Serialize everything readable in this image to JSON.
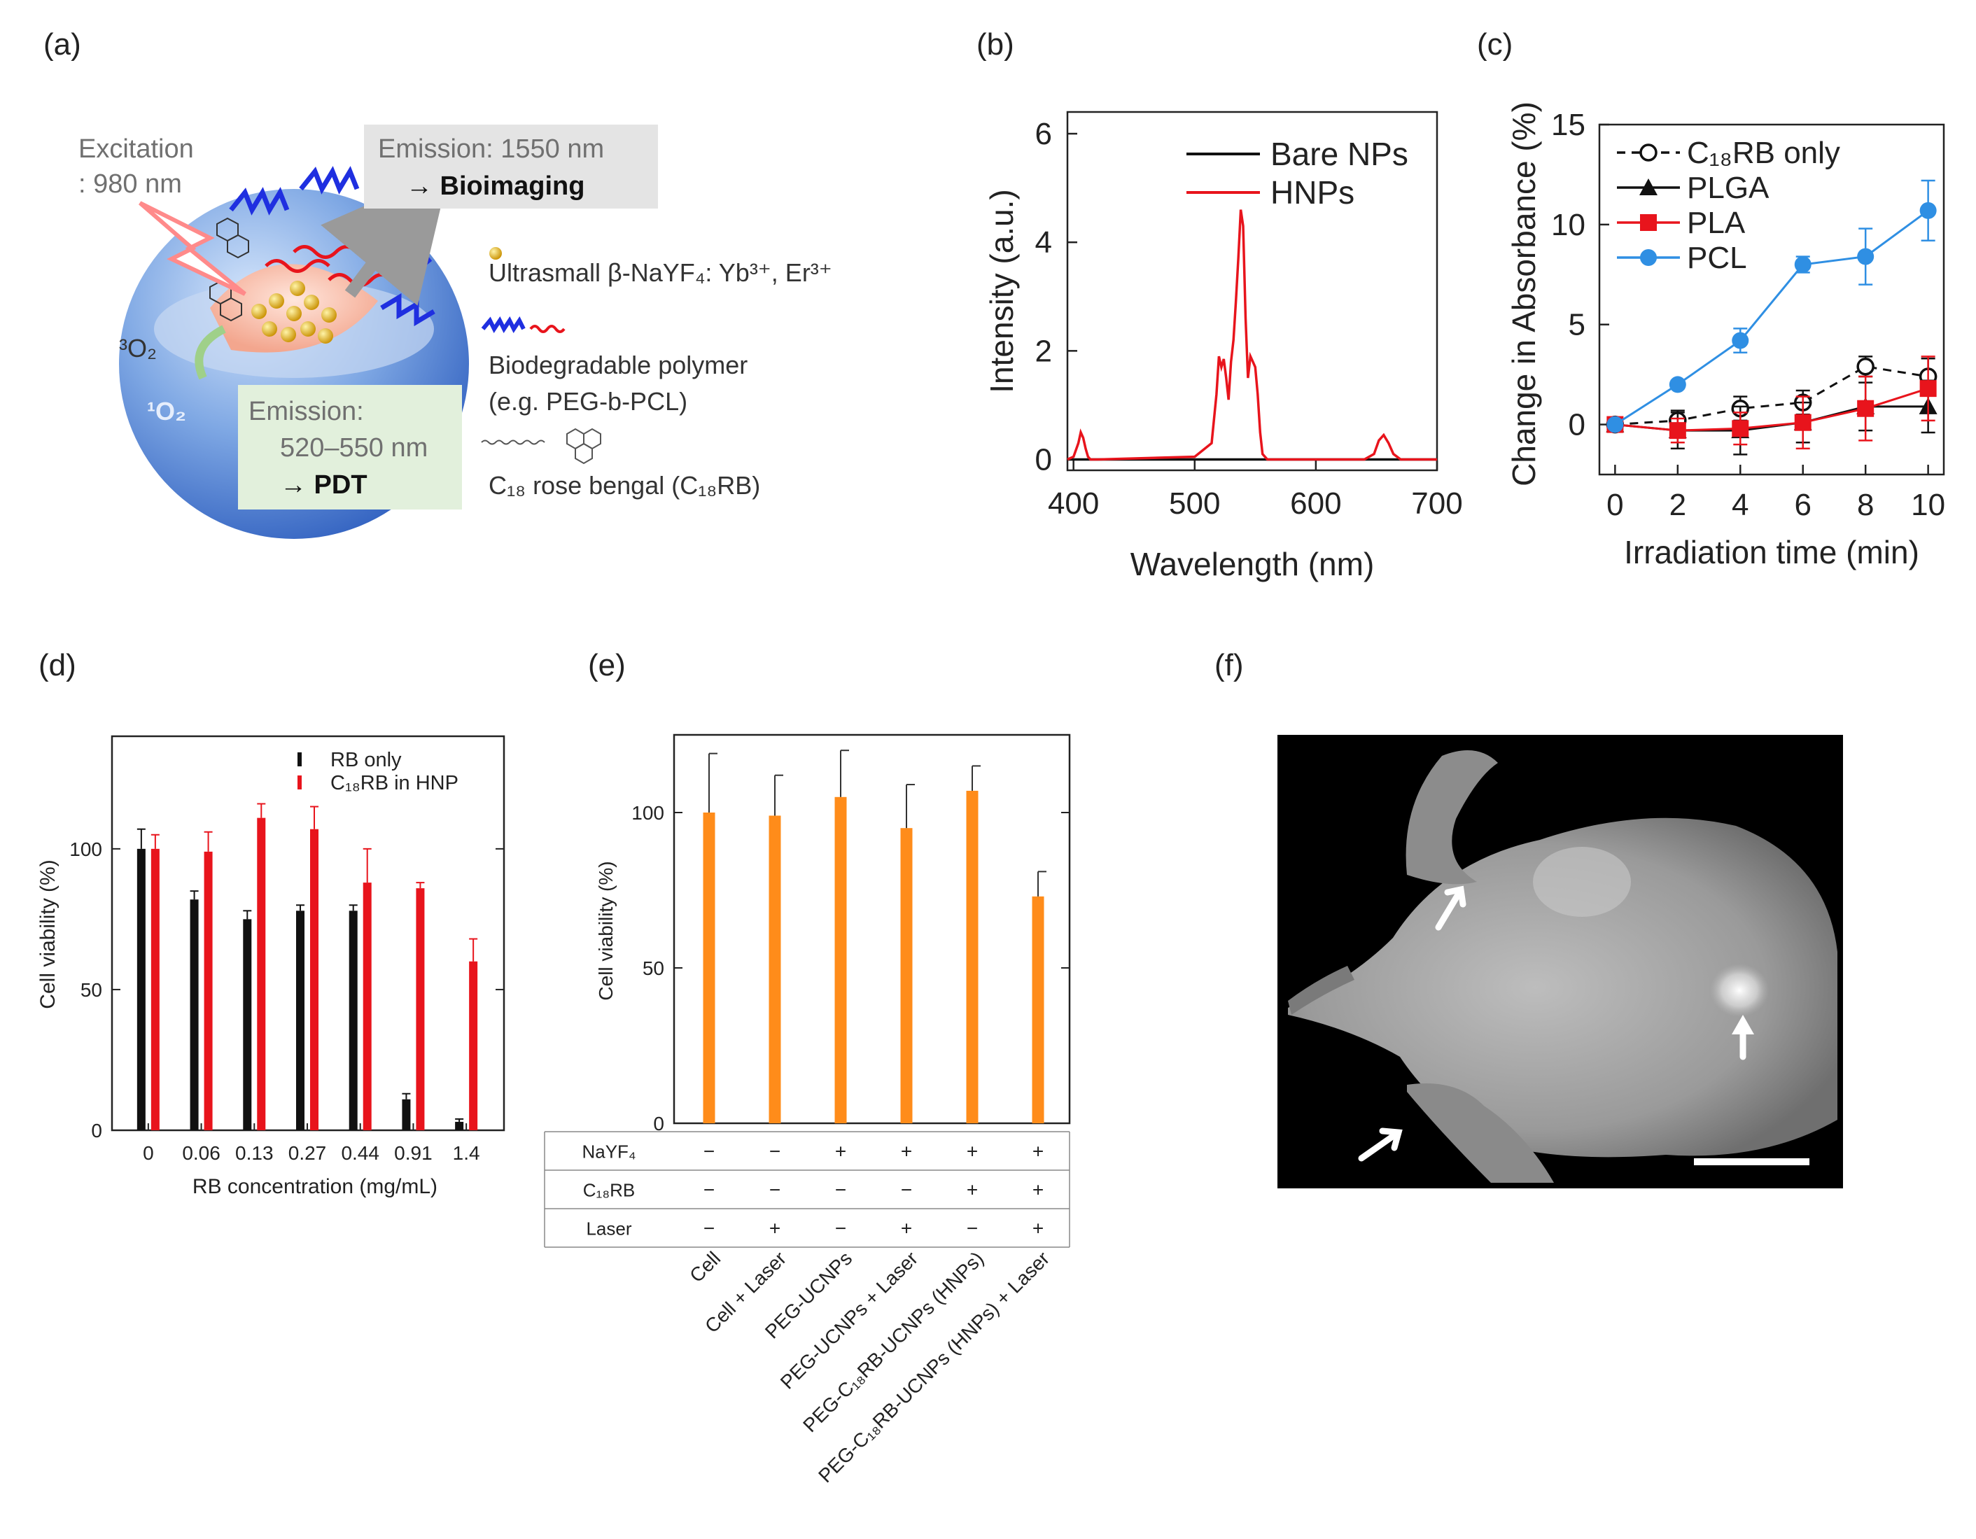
{
  "panels": {
    "a": {
      "label": "(a)",
      "excitation_line1": "Excitation",
      "excitation_line2": ": 980 nm",
      "emission1550_line1": "Emission: 1550 nm",
      "emission1550_line2": "→ Bioimaging",
      "emission_pdt_line1": "Emission:",
      "emission_pdt_line2": "520–550 nm",
      "emission_pdt_line3": "→ PDT",
      "triplet_oxygen": "³O₂",
      "singlet_oxygen": "¹O₂",
      "legend_nanoparticle": "Ultrasmall β-NaYF₄: Yb³⁺, Er³⁺",
      "legend_polymer_line1": "Biodegradable polymer",
      "legend_polymer_line2": "(e.g. PEG-b-PCL)",
      "legend_rb": "C₁₈ rose bengal (C₁₈RB)"
    },
    "b": {
      "label": "(b)"
    },
    "c": {
      "label": "(c)"
    },
    "d": {
      "label": "(d)"
    },
    "e": {
      "label": "(e)"
    },
    "f": {
      "label": "(f)"
    }
  },
  "colors": {
    "red": "#e8141c",
    "blue": "#2f8fe3",
    "orange": "#ff8c1a",
    "black": "#111111"
  },
  "chart_data": [
    {
      "panel": "b",
      "type": "line",
      "xlabel": "Wavelength (nm)",
      "ylabel": "Intensity (a.u.)",
      "xlim": [
        395,
        700
      ],
      "ylim": [
        -0.2,
        6.4
      ],
      "xticks": [
        400,
        500,
        600,
        700
      ],
      "yticks": [
        0,
        2,
        4,
        6
      ],
      "legend_position": "top-right",
      "series": [
        {
          "name": "Bare NPs",
          "color": "#111111",
          "x": [
            395,
            700
          ],
          "y": [
            0,
            0
          ]
        },
        {
          "name": "HNPs",
          "color": "#e8141c",
          "x": [
            395,
            400,
            404,
            406,
            408,
            410,
            412,
            414,
            420,
            500,
            514,
            518,
            520,
            522,
            524,
            526,
            528,
            530,
            532,
            534,
            536,
            538,
            540,
            542,
            544,
            546,
            548,
            550,
            552,
            554,
            556,
            560,
            640,
            648,
            652,
            656,
            660,
            664,
            670,
            700
          ],
          "y": [
            0,
            0.05,
            0.3,
            0.5,
            0.4,
            0.2,
            0.05,
            0,
            0,
            0.05,
            0.3,
            1.2,
            1.9,
            1.7,
            1.85,
            1.5,
            1.1,
            1.8,
            2.2,
            2.9,
            3.7,
            4.6,
            4.3,
            2.6,
            1.5,
            1.9,
            1.8,
            1.7,
            1.2,
            0.5,
            0.1,
            0,
            0,
            0.1,
            0.35,
            0.45,
            0.3,
            0.1,
            0,
            0
          ]
        }
      ]
    },
    {
      "panel": "c",
      "type": "line",
      "xlabel": "Irradiation time (min)",
      "ylabel": "Change in Absorbance (%)",
      "xlim": [
        -0.5,
        10.5
      ],
      "ylim": [
        -2.5,
        15
      ],
      "xticks": [
        0,
        2,
        4,
        6,
        8,
        10
      ],
      "yticks": [
        0,
        5,
        10,
        15
      ],
      "legend_position": "top-left",
      "series": [
        {
          "name": "C₁₈RB only",
          "color": "#111111",
          "marker": "open-circle",
          "dash": true,
          "x": [
            0,
            2,
            4,
            6,
            8,
            10
          ],
          "y": [
            0,
            0.2,
            0.8,
            1.1,
            2.9,
            2.4
          ],
          "err": [
            0.3,
            0.5,
            0.6,
            0.6,
            0.5,
            0.9
          ]
        },
        {
          "name": "PLGA",
          "color": "#111111",
          "marker": "triangle",
          "dash": false,
          "x": [
            0,
            2,
            4,
            6,
            8,
            10
          ],
          "y": [
            0,
            -0.3,
            -0.3,
            0.1,
            0.9,
            0.9
          ],
          "err": [
            0.3,
            0.9,
            1.2,
            1.0,
            1.2,
            1.3
          ]
        },
        {
          "name": "PLA",
          "color": "#e8141c",
          "marker": "square",
          "dash": false,
          "x": [
            0,
            2,
            4,
            6,
            8,
            10
          ],
          "y": [
            0,
            -0.3,
            -0.2,
            0.1,
            0.8,
            1.8
          ],
          "err": [
            0.3,
            0.6,
            0.8,
            1.3,
            1.6,
            1.6
          ]
        },
        {
          "name": "PCL",
          "color": "#2f8fe3",
          "marker": "circle",
          "dash": false,
          "x": [
            0,
            2,
            4,
            6,
            8,
            10
          ],
          "y": [
            0,
            2.0,
            4.2,
            8.0,
            8.4,
            10.7
          ],
          "err": [
            0.2,
            0.2,
            0.6,
            0.4,
            1.4,
            1.5
          ]
        }
      ]
    },
    {
      "panel": "d",
      "type": "bar",
      "xlabel": "RB concentration (mg/mL)",
      "ylabel": "Cell viability (%)",
      "ylim": [
        0,
        140
      ],
      "yticks": [
        0,
        50,
        100
      ],
      "legend_position": "top-right",
      "categories": [
        "0",
        "0.06",
        "0.13",
        "0.27",
        "0.44",
        "0.91",
        "1.4"
      ],
      "series": [
        {
          "name": "RB only",
          "color": "#111111",
          "values": [
            100,
            82,
            75,
            78,
            78,
            11,
            3
          ],
          "err": [
            7,
            3,
            3,
            2,
            2,
            2,
            1
          ]
        },
        {
          "name": "C₁₈RB in HNP",
          "color": "#e8141c",
          "values": [
            100,
            99,
            111,
            107,
            88,
            86,
            60
          ],
          "err": [
            5,
            7,
            5,
            8,
            12,
            2,
            8
          ]
        }
      ]
    },
    {
      "panel": "e",
      "type": "bar",
      "ylabel": "Cell viability (%)",
      "ylim": [
        0,
        125
      ],
      "yticks": [
        0,
        50,
        100
      ],
      "categories": [
        "Cell",
        "Cell + Laser",
        "PEG-UCNPs",
        "PEG-UCNPs + Laser",
        "PEG-C₁₈RB-UCNPs (HNPs)",
        "PEG-C₁₈RB-UCNPs (HNPs) + Laser"
      ],
      "series": [
        {
          "name": "Cell viability",
          "color": "#ff8c1a",
          "values": [
            100,
            99,
            105,
            95,
            107,
            73
          ],
          "err": [
            19,
            13,
            15,
            14,
            8,
            8
          ]
        }
      ],
      "table": {
        "row_labels": [
          "NaYF₄",
          "C₁₈RB",
          "Laser"
        ],
        "rows": [
          [
            "−",
            "−",
            "+",
            "+",
            "+",
            "+"
          ],
          [
            "−",
            "−",
            "−",
            "−",
            "+",
            "+"
          ],
          [
            "−",
            "+",
            "−",
            "+",
            "−",
            "+"
          ]
        ]
      }
    }
  ]
}
